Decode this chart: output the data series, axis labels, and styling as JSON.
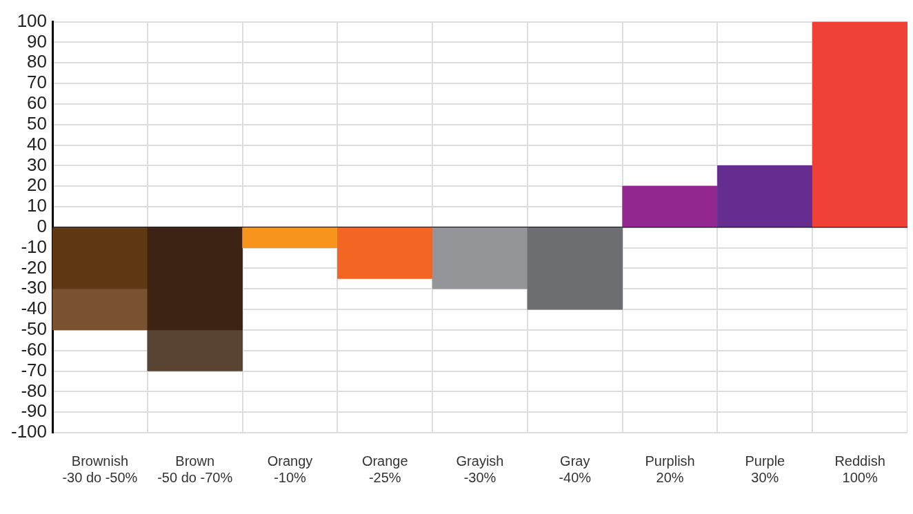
{
  "chart_data": {
    "type": "bar",
    "categories": [
      "Brownish\n-30 do -50%",
      "Brown\n-50 do -70%",
      "Orangy\n-10%",
      "Orange\n-25%",
      "Grayish\n-30%",
      "Gray\n-40%",
      "Purplish\n20%",
      "Purple\n30%",
      "Reddish\n100%"
    ],
    "stacked": true,
    "series": [
      {
        "colors": [
          "#603813",
          "#3c2314",
          "#f7941d",
          "#f26522",
          "#939598",
          "#6d6e71",
          "#92278f",
          "#662d91",
          "#ef4136"
        ],
        "values": [
          -30,
          -50,
          -10,
          -25,
          -30,
          -40,
          20,
          30,
          100
        ]
      },
      {
        "colors": [
          "#7b5230",
          "#594333",
          null,
          null,
          null,
          null,
          null,
          null,
          null
        ],
        "values": [
          -20,
          -20,
          null,
          null,
          null,
          null,
          null,
          null,
          null
        ]
      }
    ],
    "ylim": [
      -100,
      100
    ],
    "yticks": [
      -100,
      -90,
      -80,
      -70,
      -60,
      -50,
      -40,
      -30,
      -20,
      -10,
      0,
      10,
      20,
      30,
      40,
      50,
      60,
      70,
      80,
      90,
      100
    ],
    "grid": true,
    "legend": false
  }
}
